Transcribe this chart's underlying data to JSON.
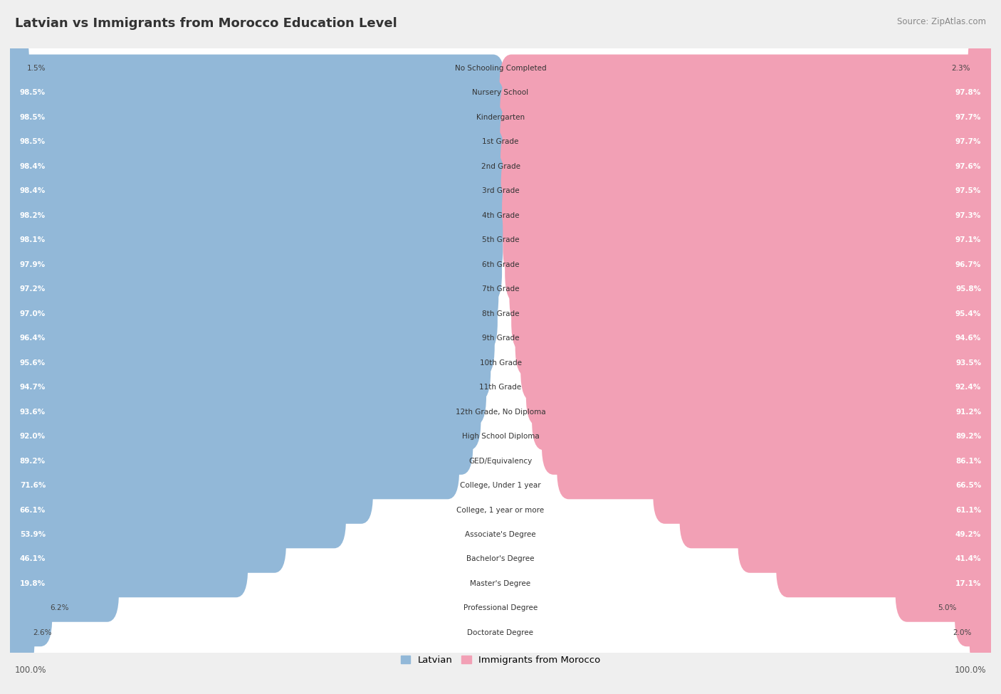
{
  "title": "Latvian vs Immigrants from Morocco Education Level",
  "source": "Source: ZipAtlas.com",
  "categories": [
    "No Schooling Completed",
    "Nursery School",
    "Kindergarten",
    "1st Grade",
    "2nd Grade",
    "3rd Grade",
    "4th Grade",
    "5th Grade",
    "6th Grade",
    "7th Grade",
    "8th Grade",
    "9th Grade",
    "10th Grade",
    "11th Grade",
    "12th Grade, No Diploma",
    "High School Diploma",
    "GED/Equivalency",
    "College, Under 1 year",
    "College, 1 year or more",
    "Associate's Degree",
    "Bachelor's Degree",
    "Master's Degree",
    "Professional Degree",
    "Doctorate Degree"
  ],
  "latvian": [
    1.5,
    98.5,
    98.5,
    98.5,
    98.4,
    98.4,
    98.2,
    98.1,
    97.9,
    97.2,
    97.0,
    96.4,
    95.6,
    94.7,
    93.6,
    92.0,
    89.2,
    71.6,
    66.1,
    53.9,
    46.1,
    19.8,
    6.2,
    2.6
  ],
  "morocco": [
    2.3,
    97.8,
    97.7,
    97.7,
    97.6,
    97.5,
    97.3,
    97.1,
    96.7,
    95.8,
    95.4,
    94.6,
    93.5,
    92.4,
    91.2,
    89.2,
    86.1,
    66.5,
    61.1,
    49.2,
    41.4,
    17.1,
    5.0,
    2.0
  ],
  "latvian_color": "#92b8d8",
  "morocco_color": "#f2a0b5",
  "background_color": "#efefef",
  "bar_bg_color": "#ffffff",
  "legend_latvian": "Latvian",
  "legend_morocco": "Immigrants from Morocco"
}
